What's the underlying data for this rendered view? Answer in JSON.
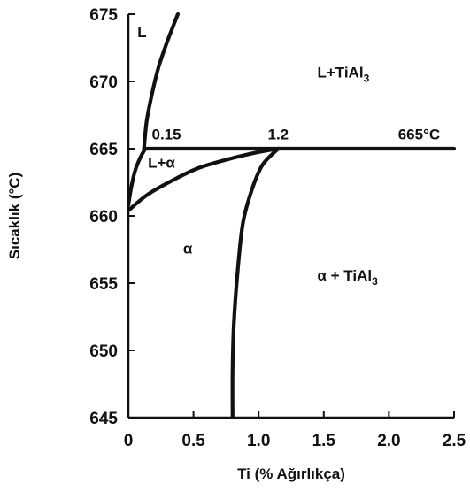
{
  "chart_data": {
    "type": "line",
    "title": "",
    "xlabel": "Ti (% Ağırlıkça)",
    "ylabel": "Sıcaklık (°C)",
    "xlim": [
      0,
      2.5
    ],
    "ylim": [
      645,
      675
    ],
    "x_ticks": [
      "0",
      "0.5",
      "1.0",
      "1.5",
      "2.0",
      "2.5"
    ],
    "y_ticks": [
      "645",
      "650",
      "655",
      "660",
      "665",
      "670",
      "675"
    ],
    "grid": false,
    "legend": "none",
    "series": [
      {
        "curve": "liquidus-upper",
        "points": [
          [
            0.12,
            665
          ],
          [
            0.14,
            667
          ],
          [
            0.18,
            669
          ],
          [
            0.23,
            671
          ],
          [
            0.3,
            673
          ],
          [
            0.38,
            675
          ]
        ]
      },
      {
        "curve": "liquidus-lower",
        "points": [
          [
            0,
            660.8
          ],
          [
            0.02,
            662
          ],
          [
            0.05,
            663.3
          ],
          [
            0.09,
            664.3
          ],
          [
            0.13,
            665
          ]
        ]
      },
      {
        "curve": "peritectic-isotherm",
        "points": [
          [
            0.12,
            665
          ],
          [
            2.5,
            665
          ]
        ]
      },
      {
        "curve": "solidus",
        "points": [
          [
            0,
            660.4
          ],
          [
            0.15,
            661.6
          ],
          [
            0.35,
            662.7
          ],
          [
            0.55,
            663.6
          ],
          [
            0.8,
            664.3
          ],
          [
            1.0,
            664.75
          ],
          [
            1.15,
            665
          ]
        ]
      },
      {
        "curve": "solvus",
        "points": [
          [
            1.15,
            665
          ],
          [
            1.03,
            663.8
          ],
          [
            0.95,
            662
          ],
          [
            0.88,
            659.5
          ],
          [
            0.84,
            656
          ],
          [
            0.81,
            652
          ],
          [
            0.8,
            648.5
          ],
          [
            0.8,
            645
          ]
        ]
      }
    ],
    "annotations": [
      {
        "text": "L",
        "x": 0.07,
        "y": 673.3
      },
      {
        "text": "L+TiAl",
        "subscript": "3",
        "x": 1.45,
        "y": 670.3
      },
      {
        "text": "0.15",
        "x": 0.18,
        "y": 665.7
      },
      {
        "text": "1.2",
        "x": 1.07,
        "y": 665.7
      },
      {
        "text": "665°C",
        "x": 2.07,
        "y": 665.7
      },
      {
        "text": "L+α",
        "x": 0.15,
        "y": 663.6
      },
      {
        "text": "α",
        "x": 0.42,
        "y": 657.2
      },
      {
        "text": "α + TiAl",
        "subscript": "3",
        "x": 1.45,
        "y": 655.2
      }
    ]
  }
}
